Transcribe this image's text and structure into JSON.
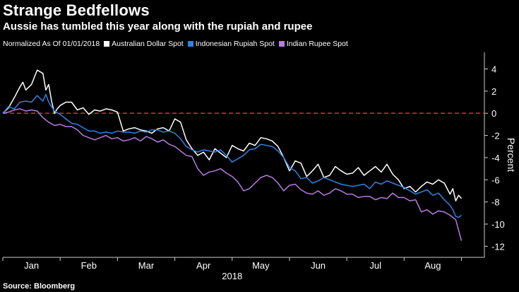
{
  "header": {
    "title": "Strange Bedfellows",
    "subtitle": "Aussie has tumbled this year along with the rupiah and rupee"
  },
  "legend": {
    "note": "Normalized As Of 01/01/2018"
  },
  "source": "Source: Bloomberg",
  "chart_data": {
    "type": "line",
    "title": "Strange Bedfellows",
    "subtitle": "Aussie has tumbled this year along with the rupiah and rupee",
    "xlabel": "2018",
    "ylabel": "Percent",
    "x_tick_labels": [
      "Jan",
      "Feb",
      "Mar",
      "Apr",
      "May",
      "Jun",
      "Jul",
      "Aug"
    ],
    "xlim": [
      0,
      8.4
    ],
    "ylim": [
      -13,
      5.5
    ],
    "y_ticks": [
      4,
      2,
      0,
      -2,
      -4,
      -6,
      -8,
      -10,
      -12
    ],
    "reference_line": {
      "y": 0,
      "color": "#d9262c",
      "style": "dashed"
    },
    "grid": false,
    "legend_position": "top",
    "series": [
      {
        "name": "Australian Dollar Spot",
        "color": "#ffffff",
        "x": [
          0,
          0.1,
          0.2,
          0.3,
          0.35,
          0.4,
          0.5,
          0.6,
          0.7,
          0.75,
          0.8,
          0.85,
          0.9,
          0.95,
          1.0,
          1.1,
          1.2,
          1.3,
          1.4,
          1.5,
          1.6,
          1.7,
          1.8,
          1.9,
          2.0,
          2.1,
          2.2,
          2.3,
          2.4,
          2.5,
          2.6,
          2.7,
          2.8,
          2.9,
          3.0,
          3.1,
          3.2,
          3.3,
          3.4,
          3.5,
          3.6,
          3.7,
          3.8,
          3.9,
          4.0,
          4.1,
          4.2,
          4.3,
          4.4,
          4.5,
          4.6,
          4.7,
          4.8,
          4.9,
          5.0,
          5.1,
          5.2,
          5.3,
          5.4,
          5.5,
          5.6,
          5.7,
          5.8,
          5.9,
          6.0,
          6.1,
          6.2,
          6.3,
          6.4,
          6.5,
          6.6,
          6.7,
          6.8,
          6.9,
          7.0,
          7.1,
          7.2,
          7.3,
          7.4,
          7.5,
          7.6,
          7.7,
          7.8,
          7.85,
          7.9,
          7.95,
          8.0
        ],
        "values": [
          0,
          0.5,
          1.4,
          2.4,
          2.8,
          2.1,
          2.6,
          3.9,
          3.6,
          2.1,
          2.6,
          1.1,
          0,
          0.4,
          0.7,
          1.0,
          1.0,
          0.3,
          0.5,
          -0.1,
          0.3,
          0.2,
          0.4,
          0.3,
          0.1,
          -1.6,
          -1.4,
          -1.3,
          -1.5,
          -1.6,
          -1.8,
          -1.4,
          -1.3,
          -1.6,
          -0.5,
          -0.8,
          -2.4,
          -3.2,
          -3.8,
          -3.5,
          -4.2,
          -3.2,
          -3.6,
          -4.0,
          -2.9,
          -3.2,
          -3.4,
          -2.7,
          -2.9,
          -2.2,
          -2.3,
          -2.5,
          -3.0,
          -4.0,
          -5.2,
          -4.3,
          -4.5,
          -5.7,
          -5.2,
          -4.6,
          -5.8,
          -5.6,
          -4.8,
          -5.2,
          -5.5,
          -5.4,
          -4.9,
          -5.6,
          -5.2,
          -4.8,
          -5.3,
          -4.6,
          -5.5,
          -6.0,
          -6.8,
          -6.6,
          -7.1,
          -6.6,
          -6.2,
          -6.4,
          -6.0,
          -6.3,
          -7.3,
          -6.8,
          -7.9,
          -7.4,
          -7.7
        ]
      },
      {
        "name": "Indonesian Rupiah Spot",
        "color": "#2f83e6",
        "x": [
          0,
          0.1,
          0.2,
          0.3,
          0.4,
          0.5,
          0.6,
          0.7,
          0.75,
          0.8,
          0.9,
          1.0,
          1.1,
          1.2,
          1.3,
          1.4,
          1.5,
          1.6,
          1.7,
          1.8,
          1.9,
          2.0,
          2.1,
          2.2,
          2.3,
          2.4,
          2.5,
          2.6,
          2.7,
          2.8,
          2.9,
          3.0,
          3.1,
          3.2,
          3.3,
          3.4,
          3.5,
          3.6,
          3.7,
          3.8,
          3.9,
          4.0,
          4.1,
          4.2,
          4.3,
          4.4,
          4.5,
          4.6,
          4.7,
          4.8,
          4.9,
          5.0,
          5.1,
          5.2,
          5.3,
          5.4,
          5.5,
          5.6,
          5.7,
          5.8,
          5.9,
          6.0,
          6.1,
          6.2,
          6.3,
          6.4,
          6.5,
          6.6,
          6.7,
          6.8,
          6.9,
          7.0,
          7.1,
          7.2,
          7.3,
          7.4,
          7.5,
          7.6,
          7.7,
          7.8,
          7.85,
          7.9,
          7.95,
          8.0
        ],
        "values": [
          0,
          0.6,
          0.4,
          1.0,
          1.1,
          1.0,
          1.6,
          1.1,
          1.7,
          1.0,
          0.2,
          -0.1,
          -0.5,
          -0.9,
          -1.0,
          -1.3,
          -1.6,
          -1.6,
          -1.8,
          -1.7,
          -1.8,
          -1.6,
          -1.7,
          -1.7,
          -1.8,
          -1.6,
          -1.7,
          -1.5,
          -1.5,
          -1.7,
          -1.6,
          -1.8,
          -2.3,
          -3.0,
          -3.3,
          -3.5,
          -3.3,
          -3.4,
          -3.5,
          -3.3,
          -3.8,
          -4.4,
          -4.1,
          -3.8,
          -3.3,
          -3.2,
          -2.8,
          -2.9,
          -3.0,
          -3.4,
          -4.0,
          -4.9,
          -5.2,
          -5.9,
          -5.8,
          -6.3,
          -6.1,
          -5.8,
          -6.0,
          -6.2,
          -6.4,
          -6.5,
          -6.6,
          -6.5,
          -6.4,
          -6.8,
          -6.2,
          -6.4,
          -6.1,
          -6.3,
          -6.5,
          -6.7,
          -7.0,
          -7.3,
          -7.1,
          -6.9,
          -7.4,
          -7.2,
          -7.8,
          -8.3,
          -8.7,
          -9.3,
          -9.4,
          -9.2
        ]
      },
      {
        "name": "Indian Rupee Spot",
        "color": "#b77be0",
        "x": [
          0,
          0.1,
          0.2,
          0.3,
          0.4,
          0.5,
          0.6,
          0.7,
          0.8,
          0.9,
          1.0,
          1.1,
          1.2,
          1.3,
          1.4,
          1.5,
          1.6,
          1.7,
          1.8,
          1.9,
          2.0,
          2.1,
          2.2,
          2.3,
          2.4,
          2.5,
          2.6,
          2.7,
          2.8,
          2.9,
          3.0,
          3.1,
          3.2,
          3.3,
          3.4,
          3.5,
          3.6,
          3.7,
          3.8,
          3.9,
          4.0,
          4.1,
          4.2,
          4.3,
          4.4,
          4.5,
          4.6,
          4.7,
          4.8,
          4.9,
          5.0,
          5.1,
          5.2,
          5.3,
          5.4,
          5.5,
          5.6,
          5.7,
          5.8,
          5.9,
          6.0,
          6.1,
          6.2,
          6.3,
          6.4,
          6.5,
          6.6,
          6.7,
          6.8,
          6.9,
          7.0,
          7.1,
          7.2,
          7.3,
          7.4,
          7.5,
          7.6,
          7.7,
          7.8,
          7.9,
          8.0
        ],
        "values": [
          0,
          0.1,
          0.3,
          0.4,
          0.2,
          0.3,
          0.2,
          -0.4,
          -0.8,
          -1.1,
          -1.0,
          -1.2,
          -1.2,
          -1.5,
          -2.0,
          -2.2,
          -2.4,
          -2.2,
          -2.0,
          -2.3,
          -2.2,
          -2.5,
          -2.4,
          -2.2,
          -2.5,
          -2.1,
          -2.3,
          -2.6,
          -2.4,
          -2.8,
          -3.0,
          -3.4,
          -3.8,
          -3.9,
          -5.0,
          -5.6,
          -5.3,
          -5.2,
          -5.0,
          -5.4,
          -5.7,
          -6.2,
          -7.0,
          -6.8,
          -6.3,
          -5.8,
          -5.6,
          -5.8,
          -6.3,
          -7.0,
          -6.5,
          -6.4,
          -6.9,
          -7.2,
          -7.3,
          -7.0,
          -7.4,
          -7.2,
          -6.8,
          -7.0,
          -7.3,
          -7.3,
          -7.6,
          -7.5,
          -7.5,
          -7.8,
          -7.6,
          -7.7,
          -7.2,
          -7.6,
          -7.6,
          -7.9,
          -7.8,
          -8.9,
          -8.7,
          -9.1,
          -8.8,
          -8.9,
          -9.2,
          -9.6,
          -11.5
        ]
      }
    ]
  }
}
